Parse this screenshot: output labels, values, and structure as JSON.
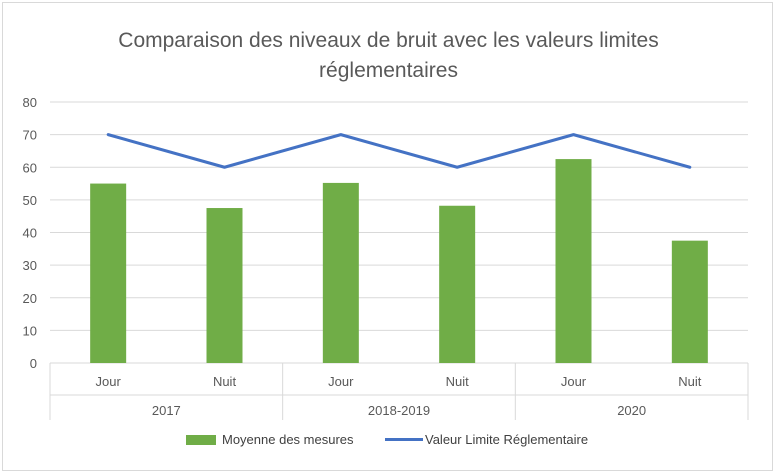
{
  "chart_data": {
    "type": "bar",
    "title_line1": "Comparaison des niveaux de bruit avec les valeurs limites",
    "title_line2": "réglementaires",
    "ylim": [
      0,
      80
    ],
    "yticks": [
      "0",
      "10",
      "20",
      "30",
      "40",
      "50",
      "60",
      "70",
      "80"
    ],
    "grid": true,
    "categories": [
      "Jour",
      "Nuit",
      "Jour",
      "Nuit",
      "Jour",
      "Nuit"
    ],
    "groups": [
      {
        "label": "2017",
        "span": 2
      },
      {
        "label": "2018-2019",
        "span": 2
      },
      {
        "label": "2020",
        "span": 2
      }
    ],
    "series": [
      {
        "name": "Moyenne des mesures",
        "kind": "bar",
        "color": "#70ad47",
        "values": [
          55,
          47.5,
          55.2,
          48.2,
          62.5,
          37.5
        ]
      },
      {
        "name": "Valeur Limite Réglementaire",
        "kind": "line",
        "color": "#4472c4",
        "values": [
          70,
          60,
          70,
          60,
          70,
          60
        ]
      }
    ],
    "legend_position": "bottom"
  }
}
